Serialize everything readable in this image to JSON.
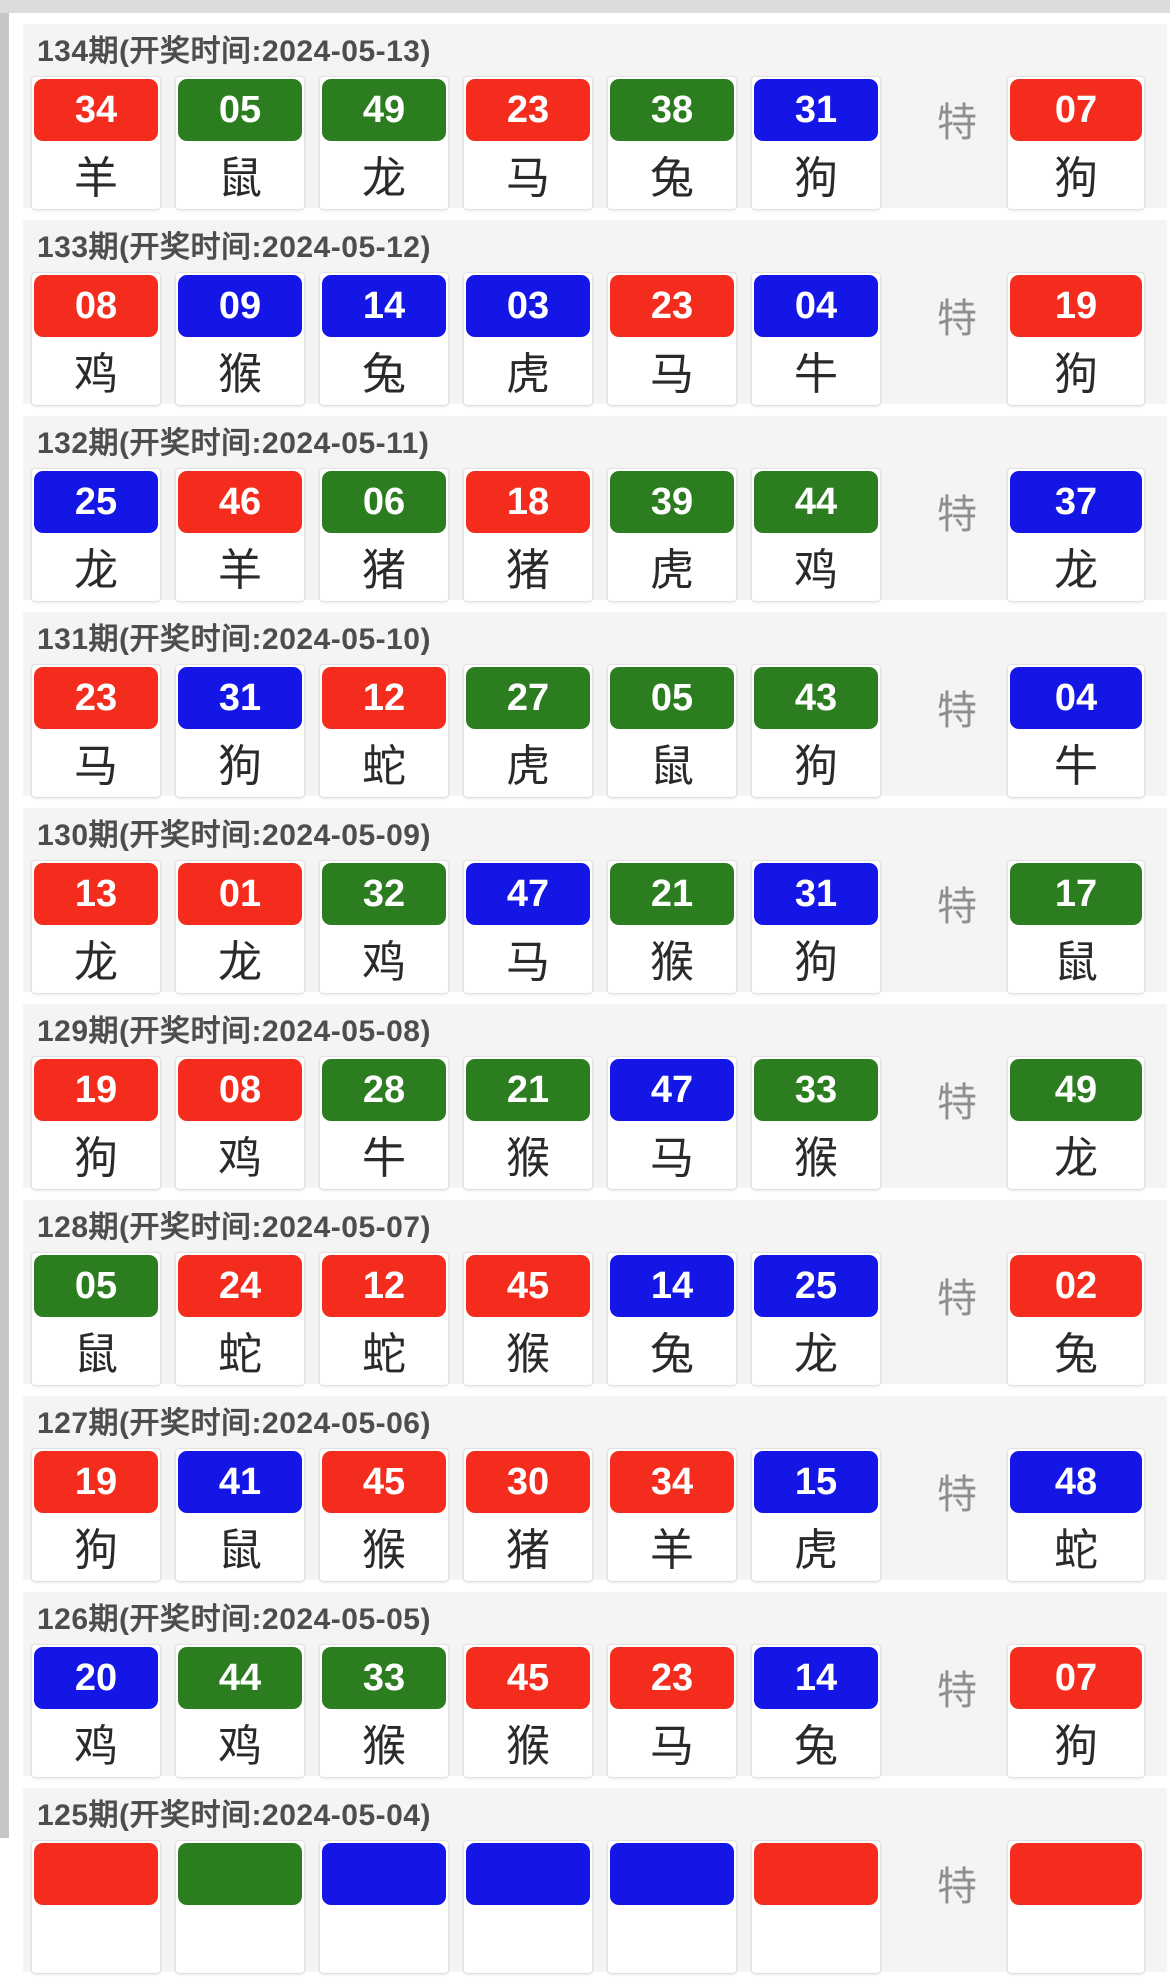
{
  "colors": {
    "red": "#f32c1e",
    "green": "#2c7d20",
    "blue": "#1416e6"
  },
  "labels": {
    "special": "特"
  },
  "periods": [
    {
      "header": "134期(开奖时间:2024-05-13)",
      "balls": [
        {
          "num": "34",
          "color": "red",
          "zodiac": "羊"
        },
        {
          "num": "05",
          "color": "green",
          "zodiac": "鼠"
        },
        {
          "num": "49",
          "color": "green",
          "zodiac": "龙"
        },
        {
          "num": "23",
          "color": "red",
          "zodiac": "马"
        },
        {
          "num": "38",
          "color": "green",
          "zodiac": "兔"
        },
        {
          "num": "31",
          "color": "blue",
          "zodiac": "狗"
        }
      ],
      "special": {
        "num": "07",
        "color": "red",
        "zodiac": "狗"
      }
    },
    {
      "header": "133期(开奖时间:2024-05-12)",
      "balls": [
        {
          "num": "08",
          "color": "red",
          "zodiac": "鸡"
        },
        {
          "num": "09",
          "color": "blue",
          "zodiac": "猴"
        },
        {
          "num": "14",
          "color": "blue",
          "zodiac": "兔"
        },
        {
          "num": "03",
          "color": "blue",
          "zodiac": "虎"
        },
        {
          "num": "23",
          "color": "red",
          "zodiac": "马"
        },
        {
          "num": "04",
          "color": "blue",
          "zodiac": "牛"
        }
      ],
      "special": {
        "num": "19",
        "color": "red",
        "zodiac": "狗"
      }
    },
    {
      "header": "132期(开奖时间:2024-05-11)",
      "balls": [
        {
          "num": "25",
          "color": "blue",
          "zodiac": "龙"
        },
        {
          "num": "46",
          "color": "red",
          "zodiac": "羊"
        },
        {
          "num": "06",
          "color": "green",
          "zodiac": "猪"
        },
        {
          "num": "18",
          "color": "red",
          "zodiac": "猪"
        },
        {
          "num": "39",
          "color": "green",
          "zodiac": "虎"
        },
        {
          "num": "44",
          "color": "green",
          "zodiac": "鸡"
        }
      ],
      "special": {
        "num": "37",
        "color": "blue",
        "zodiac": "龙"
      }
    },
    {
      "header": "131期(开奖时间:2024-05-10)",
      "balls": [
        {
          "num": "23",
          "color": "red",
          "zodiac": "马"
        },
        {
          "num": "31",
          "color": "blue",
          "zodiac": "狗"
        },
        {
          "num": "12",
          "color": "red",
          "zodiac": "蛇"
        },
        {
          "num": "27",
          "color": "green",
          "zodiac": "虎"
        },
        {
          "num": "05",
          "color": "green",
          "zodiac": "鼠"
        },
        {
          "num": "43",
          "color": "green",
          "zodiac": "狗"
        }
      ],
      "special": {
        "num": "04",
        "color": "blue",
        "zodiac": "牛"
      }
    },
    {
      "header": "130期(开奖时间:2024-05-09)",
      "balls": [
        {
          "num": "13",
          "color": "red",
          "zodiac": "龙"
        },
        {
          "num": "01",
          "color": "red",
          "zodiac": "龙"
        },
        {
          "num": "32",
          "color": "green",
          "zodiac": "鸡"
        },
        {
          "num": "47",
          "color": "blue",
          "zodiac": "马"
        },
        {
          "num": "21",
          "color": "green",
          "zodiac": "猴"
        },
        {
          "num": "31",
          "color": "blue",
          "zodiac": "狗"
        }
      ],
      "special": {
        "num": "17",
        "color": "green",
        "zodiac": "鼠"
      }
    },
    {
      "header": "129期(开奖时间:2024-05-08)",
      "balls": [
        {
          "num": "19",
          "color": "red",
          "zodiac": "狗"
        },
        {
          "num": "08",
          "color": "red",
          "zodiac": "鸡"
        },
        {
          "num": "28",
          "color": "green",
          "zodiac": "牛"
        },
        {
          "num": "21",
          "color": "green",
          "zodiac": "猴"
        },
        {
          "num": "47",
          "color": "blue",
          "zodiac": "马"
        },
        {
          "num": "33",
          "color": "green",
          "zodiac": "猴"
        }
      ],
      "special": {
        "num": "49",
        "color": "green",
        "zodiac": "龙"
      }
    },
    {
      "header": "128期(开奖时间:2024-05-07)",
      "balls": [
        {
          "num": "05",
          "color": "green",
          "zodiac": "鼠"
        },
        {
          "num": "24",
          "color": "red",
          "zodiac": "蛇"
        },
        {
          "num": "12",
          "color": "red",
          "zodiac": "蛇"
        },
        {
          "num": "45",
          "color": "red",
          "zodiac": "猴"
        },
        {
          "num": "14",
          "color": "blue",
          "zodiac": "兔"
        },
        {
          "num": "25",
          "color": "blue",
          "zodiac": "龙"
        }
      ],
      "special": {
        "num": "02",
        "color": "red",
        "zodiac": "兔"
      }
    },
    {
      "header": "127期(开奖时间:2024-05-06)",
      "balls": [
        {
          "num": "19",
          "color": "red",
          "zodiac": "狗"
        },
        {
          "num": "41",
          "color": "blue",
          "zodiac": "鼠"
        },
        {
          "num": "45",
          "color": "red",
          "zodiac": "猴"
        },
        {
          "num": "30",
          "color": "red",
          "zodiac": "猪"
        },
        {
          "num": "34",
          "color": "red",
          "zodiac": "羊"
        },
        {
          "num": "15",
          "color": "blue",
          "zodiac": "虎"
        }
      ],
      "special": {
        "num": "48",
        "color": "blue",
        "zodiac": "蛇"
      }
    },
    {
      "header": "126期(开奖时间:2024-05-05)",
      "balls": [
        {
          "num": "20",
          "color": "blue",
          "zodiac": "鸡"
        },
        {
          "num": "44",
          "color": "green",
          "zodiac": "鸡"
        },
        {
          "num": "33",
          "color": "green",
          "zodiac": "猴"
        },
        {
          "num": "45",
          "color": "red",
          "zodiac": "猴"
        },
        {
          "num": "23",
          "color": "red",
          "zodiac": "马"
        },
        {
          "num": "14",
          "color": "blue",
          "zodiac": "兔"
        }
      ],
      "special": {
        "num": "07",
        "color": "red",
        "zodiac": "狗"
      }
    },
    {
      "header": "125期(开奖时间:2024-05-04)",
      "partial": true,
      "balls": [
        {
          "num": "",
          "color": "red",
          "zodiac": ""
        },
        {
          "num": "",
          "color": "green",
          "zodiac": ""
        },
        {
          "num": "",
          "color": "blue",
          "zodiac": ""
        },
        {
          "num": "",
          "color": "blue",
          "zodiac": ""
        },
        {
          "num": "",
          "color": "blue",
          "zodiac": ""
        },
        {
          "num": "",
          "color": "red",
          "zodiac": ""
        }
      ],
      "special": {
        "num": "",
        "color": "red",
        "zodiac": ""
      }
    }
  ]
}
